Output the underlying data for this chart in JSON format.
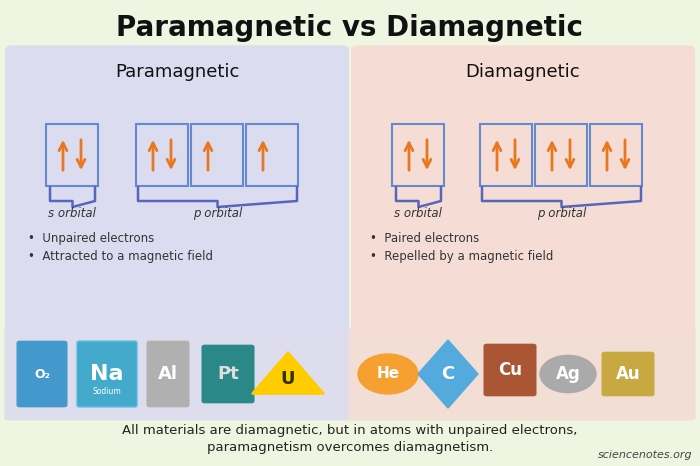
{
  "title": "Paramagnetic vs Diamagnetic",
  "bg_color": "#eef5e0",
  "title_color": "#111111",
  "title_fontsize": 20,
  "para_bg": "#dcdcf0",
  "dia_bg": "#f5ddd5",
  "box_border": "#6688cc",
  "arrow_color": "#e87820",
  "brace_color": "#5566bb",
  "para_label": "Paramagnetic",
  "dia_label": "Diamagnetic",
  "s_orbital": "s orbital",
  "p_orbital": "p orbital",
  "para_bullets": [
    "Unpaired electrons",
    "Attracted to a magnetic field"
  ],
  "dia_bullets": [
    "Paired electrons",
    "Repelled by a magnetic field"
  ],
  "footer_line1": "All materials are diamagnetic, but in atoms with unpaired electrons,",
  "footer_line2": "paramagnetism overcomes diamagnetism.",
  "credit": "sciencenotes.org",
  "footer_color": "#222222",
  "credit_color": "#444444",
  "strip_para_bg": "#dcdcf0",
  "strip_dia_bg": "#f5ddd5"
}
